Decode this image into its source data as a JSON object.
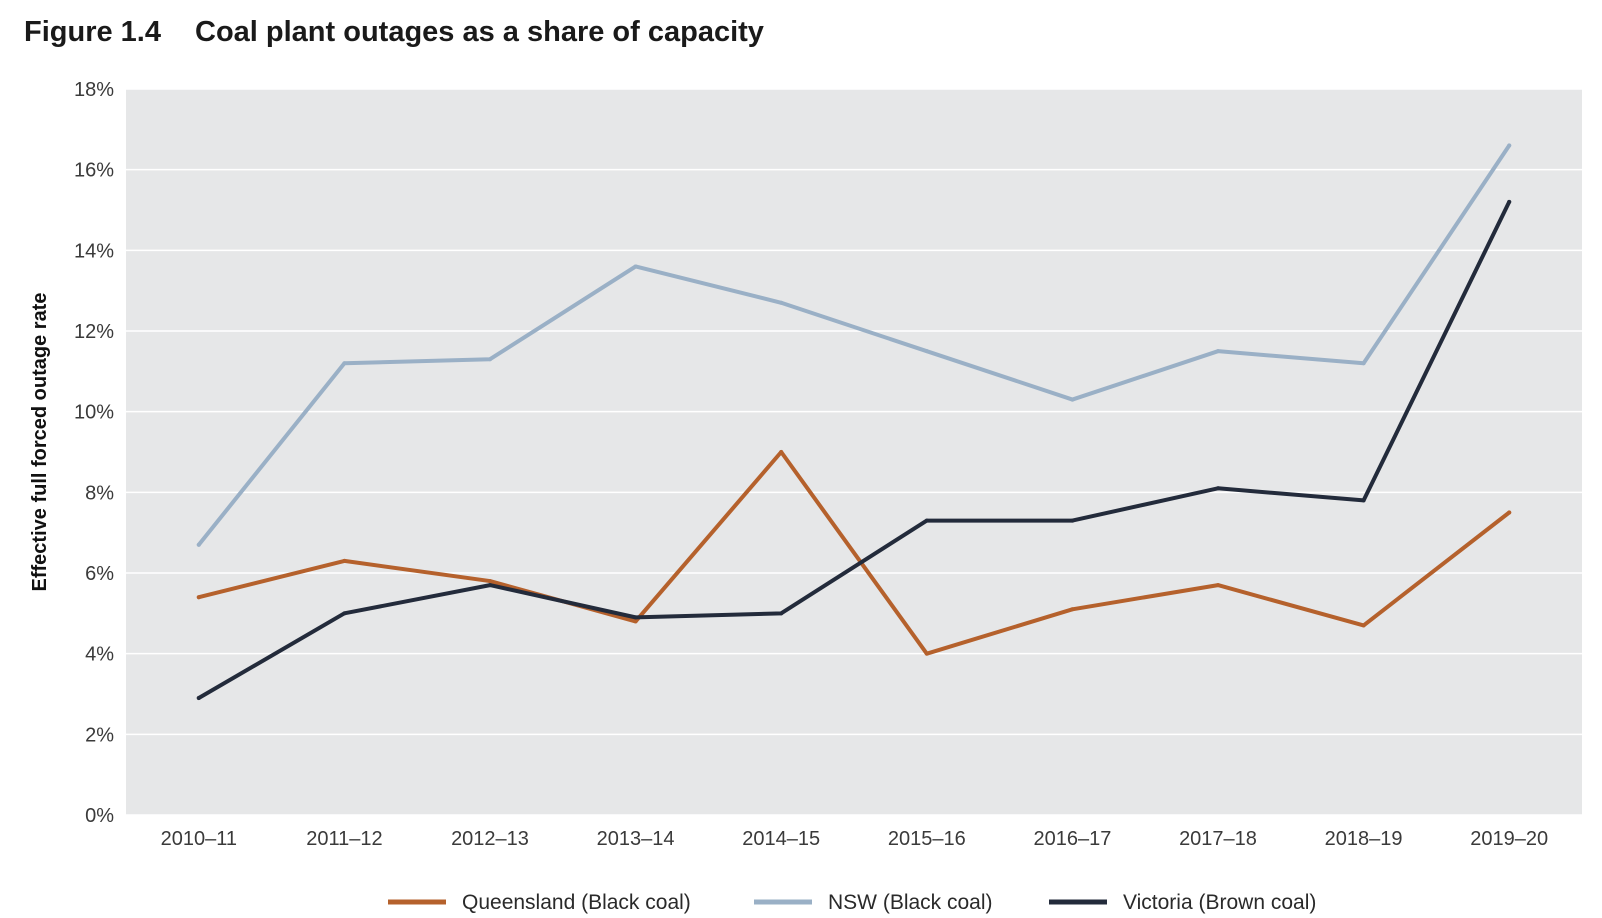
{
  "figure": {
    "number": "Figure 1.4",
    "title": "Coal plant outages as a share of capacity"
  },
  "chart_data": {
    "type": "line",
    "title": "Coal plant outages as a share of capacity",
    "xlabel": "",
    "ylabel": "Effective full forced outage rate",
    "ylim": [
      0,
      18
    ],
    "ytick_values": [
      0,
      2,
      4,
      6,
      8,
      10,
      12,
      14,
      16,
      18
    ],
    "ytick_labels": [
      "0%",
      "2%",
      "4%",
      "6%",
      "8%",
      "10%",
      "12%",
      "14%",
      "16%",
      "18%"
    ],
    "categories": [
      "2010–11",
      "2011–12",
      "2012–13",
      "2013–14",
      "2014–15",
      "2015–16",
      "2016–17",
      "2017–18",
      "2018–19",
      "2019–20"
    ],
    "series": [
      {
        "name": "Queensland (Black coal)",
        "color": "#b5612c",
        "values": [
          5.4,
          6.3,
          5.8,
          4.8,
          9.0,
          4.0,
          5.1,
          5.7,
          4.7,
          7.5
        ]
      },
      {
        "name": "NSW (Black coal)",
        "color": "#9ab0c6",
        "values": [
          6.7,
          11.2,
          11.3,
          13.6,
          12.7,
          11.5,
          10.3,
          11.5,
          11.2,
          16.6
        ]
      },
      {
        "name": "Victoria (Brown coal)",
        "color": "#232b3b",
        "values": [
          2.9,
          5.0,
          5.7,
          4.9,
          5.0,
          7.3,
          7.3,
          8.1,
          7.8,
          15.2
        ]
      }
    ],
    "grid": true,
    "plot_background": "#e6e7e8",
    "legend_position": "bottom"
  }
}
